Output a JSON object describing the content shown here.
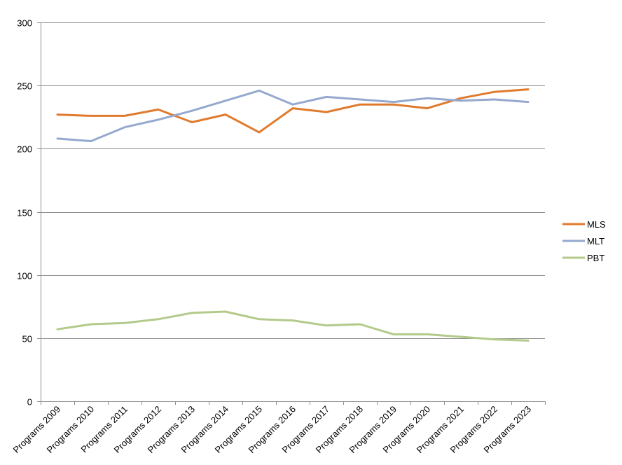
{
  "chart_data": {
    "type": "line",
    "categories": [
      "Programs 2009",
      "Programs 2010",
      "Programs 2011",
      "Programs 2012",
      "Programs 2013",
      "Programs 2014",
      "Programs 2015",
      "Programs 2016",
      "Programs 2017",
      "Programs 2018",
      "Programs 2019",
      "Programs 2020",
      "Programs 2021",
      "Programs 2022",
      "Programs 2023"
    ],
    "series": [
      {
        "name": "MLS",
        "color": "#e07b2e",
        "values": [
          227,
          226,
          226,
          231,
          221,
          227,
          213,
          232,
          229,
          235,
          235,
          232,
          240,
          245,
          247
        ]
      },
      {
        "name": "MLT",
        "color": "#95a9cf",
        "values": [
          208,
          206,
          217,
          223,
          230,
          238,
          246,
          235,
          241,
          239,
          237,
          240,
          238,
          239,
          237
        ]
      },
      {
        "name": "PBT",
        "color": "#b3ca8a",
        "values": [
          57,
          61,
          62,
          65,
          70,
          71,
          65,
          64,
          60,
          61,
          53,
          53,
          51,
          49,
          48
        ]
      }
    ],
    "y_ticks": [
      "0",
      "50",
      "100",
      "150",
      "200",
      "250",
      "300"
    ],
    "ylim": [
      0,
      300
    ],
    "grid": true,
    "legend_position": "right"
  }
}
